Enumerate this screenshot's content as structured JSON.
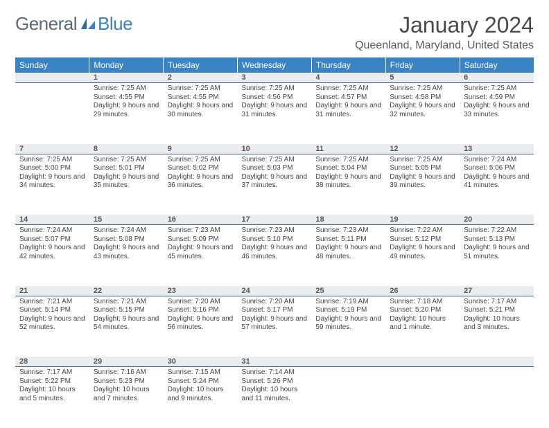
{
  "brand": {
    "part1": "General",
    "part2": "Blue"
  },
  "title": "January 2024",
  "location": "Queenland, Maryland, United States",
  "colors": {
    "header_bg": "#3a83c4",
    "header_text": "#ffffff",
    "daynum_bg": "#e9edf0",
    "daynum_border": "#3a5a7a",
    "body_text": "#444444",
    "page_bg": "#ffffff"
  },
  "weekdays": [
    "Sunday",
    "Monday",
    "Tuesday",
    "Wednesday",
    "Thursday",
    "Friday",
    "Saturday"
  ],
  "weeks": [
    {
      "nums": [
        "",
        "1",
        "2",
        "3",
        "4",
        "5",
        "6"
      ],
      "cells": [
        null,
        {
          "sr": "7:25 AM",
          "ss": "4:55 PM",
          "dl": "9 hours and 29 minutes."
        },
        {
          "sr": "7:25 AM",
          "ss": "4:55 PM",
          "dl": "9 hours and 30 minutes."
        },
        {
          "sr": "7:25 AM",
          "ss": "4:56 PM",
          "dl": "9 hours and 31 minutes."
        },
        {
          "sr": "7:25 AM",
          "ss": "4:57 PM",
          "dl": "9 hours and 31 minutes."
        },
        {
          "sr": "7:25 AM",
          "ss": "4:58 PM",
          "dl": "9 hours and 32 minutes."
        },
        {
          "sr": "7:25 AM",
          "ss": "4:59 PM",
          "dl": "9 hours and 33 minutes."
        }
      ]
    },
    {
      "nums": [
        "7",
        "8",
        "9",
        "10",
        "11",
        "12",
        "13"
      ],
      "cells": [
        {
          "sr": "7:25 AM",
          "ss": "5:00 PM",
          "dl": "9 hours and 34 minutes."
        },
        {
          "sr": "7:25 AM",
          "ss": "5:01 PM",
          "dl": "9 hours and 35 minutes."
        },
        {
          "sr": "7:25 AM",
          "ss": "5:02 PM",
          "dl": "9 hours and 36 minutes."
        },
        {
          "sr": "7:25 AM",
          "ss": "5:03 PM",
          "dl": "9 hours and 37 minutes."
        },
        {
          "sr": "7:25 AM",
          "ss": "5:04 PM",
          "dl": "9 hours and 38 minutes."
        },
        {
          "sr": "7:25 AM",
          "ss": "5:05 PM",
          "dl": "9 hours and 39 minutes."
        },
        {
          "sr": "7:24 AM",
          "ss": "5:06 PM",
          "dl": "9 hours and 41 minutes."
        }
      ]
    },
    {
      "nums": [
        "14",
        "15",
        "16",
        "17",
        "18",
        "19",
        "20"
      ],
      "cells": [
        {
          "sr": "7:24 AM",
          "ss": "5:07 PM",
          "dl": "9 hours and 42 minutes."
        },
        {
          "sr": "7:24 AM",
          "ss": "5:08 PM",
          "dl": "9 hours and 43 minutes."
        },
        {
          "sr": "7:23 AM",
          "ss": "5:09 PM",
          "dl": "9 hours and 45 minutes."
        },
        {
          "sr": "7:23 AM",
          "ss": "5:10 PM",
          "dl": "9 hours and 46 minutes."
        },
        {
          "sr": "7:23 AM",
          "ss": "5:11 PM",
          "dl": "9 hours and 48 minutes."
        },
        {
          "sr": "7:22 AM",
          "ss": "5:12 PM",
          "dl": "9 hours and 49 minutes."
        },
        {
          "sr": "7:22 AM",
          "ss": "5:13 PM",
          "dl": "9 hours and 51 minutes."
        }
      ]
    },
    {
      "nums": [
        "21",
        "22",
        "23",
        "24",
        "25",
        "26",
        "27"
      ],
      "cells": [
        {
          "sr": "7:21 AM",
          "ss": "5:14 PM",
          "dl": "9 hours and 52 minutes."
        },
        {
          "sr": "7:21 AM",
          "ss": "5:15 PM",
          "dl": "9 hours and 54 minutes."
        },
        {
          "sr": "7:20 AM",
          "ss": "5:16 PM",
          "dl": "9 hours and 56 minutes."
        },
        {
          "sr": "7:20 AM",
          "ss": "5:17 PM",
          "dl": "9 hours and 57 minutes."
        },
        {
          "sr": "7:19 AM",
          "ss": "5:19 PM",
          "dl": "9 hours and 59 minutes."
        },
        {
          "sr": "7:18 AM",
          "ss": "5:20 PM",
          "dl": "10 hours and 1 minute."
        },
        {
          "sr": "7:17 AM",
          "ss": "5:21 PM",
          "dl": "10 hours and 3 minutes."
        }
      ]
    },
    {
      "nums": [
        "28",
        "29",
        "30",
        "31",
        "",
        "",
        ""
      ],
      "cells": [
        {
          "sr": "7:17 AM",
          "ss": "5:22 PM",
          "dl": "10 hours and 5 minutes."
        },
        {
          "sr": "7:16 AM",
          "ss": "5:23 PM",
          "dl": "10 hours and 7 minutes."
        },
        {
          "sr": "7:15 AM",
          "ss": "5:24 PM",
          "dl": "10 hours and 9 minutes."
        },
        {
          "sr": "7:14 AM",
          "ss": "5:26 PM",
          "dl": "10 hours and 11 minutes."
        },
        null,
        null,
        null
      ]
    }
  ],
  "labels": {
    "sunrise": "Sunrise:",
    "sunset": "Sunset:",
    "daylight": "Daylight:"
  }
}
